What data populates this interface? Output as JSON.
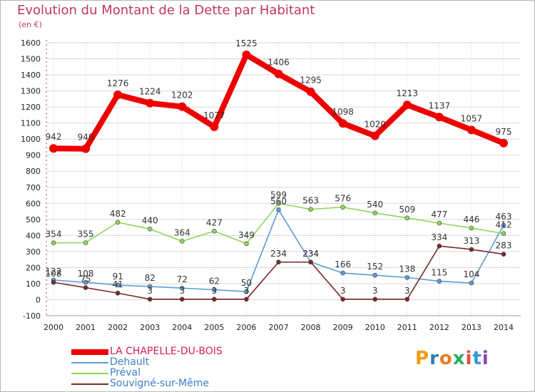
{
  "title": "Evolution du Montant de la Dette par Habitant",
  "unit_label": "(en €)",
  "logo_text": "Proxiti",
  "colors": {
    "title": "#c0395a",
    "grid": "#d8d8d8",
    "axis_text": "#222222",
    "value_text": "#333333"
  },
  "chart_data": {
    "type": "line",
    "title": "Evolution du Montant de la Dette par Habitant",
    "ylabel": "(en €)",
    "xlabel": "",
    "x": [
      2000,
      2001,
      2002,
      2003,
      2004,
      2005,
      2006,
      2007,
      2008,
      2009,
      2010,
      2011,
      2012,
      2013,
      2014
    ],
    "ylim": [
      -100,
      1600
    ],
    "yticks": [
      -100,
      0,
      100,
      200,
      300,
      400,
      500,
      600,
      700,
      800,
      900,
      1000,
      1100,
      1200,
      1300,
      1400,
      1500,
      1600
    ],
    "grid": true,
    "legend_position": "bottom-left",
    "series": [
      {
        "name": "LA CHAPELLE-DU-BOIS",
        "color": "#ee0000",
        "values": [
          942,
          940,
          1276,
          1224,
          1202,
          1077,
          1525,
          1406,
          1295,
          1098,
          1020,
          1213,
          1137,
          1057,
          975
        ]
      },
      {
        "name": "Dehault",
        "color": "#5b9bd5",
        "values": [
          122,
          108,
          91,
          82,
          72,
          62,
          50,
          560,
          234,
          166,
          152,
          138,
          115,
          104,
          463
        ]
      },
      {
        "name": "Préval",
        "color": "#8fd45a",
        "values": [
          354,
          355,
          482,
          440,
          364,
          427,
          349,
          599,
          563,
          576,
          540,
          509,
          477,
          446,
          412
        ]
      },
      {
        "name": "Souvigné-sur-Même",
        "color": "#7a2a2a",
        "values": [
          108,
          75,
          41,
          3,
          3,
          3,
          3,
          234,
          234,
          3,
          3,
          3,
          334,
          313,
          283
        ]
      }
    ]
  }
}
